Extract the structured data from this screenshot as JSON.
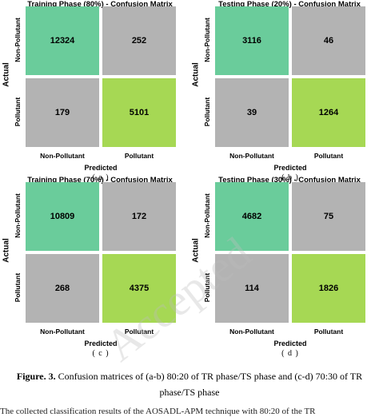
{
  "colors": {
    "true_negative": "#6acc9b",
    "true_positive": "#a6d854",
    "off_diagonal": "#b3b3b3"
  },
  "chart_data": [
    {
      "type": "heatmap",
      "title": "Training Phase (80%) - Confusion Matrix",
      "xlabel": "Predicted",
      "ylabel": "Actual",
      "x_categories": [
        "Non-Pollutant",
        "Pollutant"
      ],
      "y_categories": [
        "Non-Pollutant",
        "Pollutant"
      ],
      "matrix": [
        [
          12324,
          252
        ],
        [
          179,
          5101
        ]
      ],
      "sub_label": "( a )"
    },
    {
      "type": "heatmap",
      "title": "Testing Phase (20%) - Confusion Matrix",
      "xlabel": "Predicted",
      "ylabel": "Actual",
      "x_categories": [
        "Non-Pollutant",
        "Pollutant"
      ],
      "y_categories": [
        "Non-Pollutant",
        "Pollutant"
      ],
      "matrix": [
        [
          3116,
          46
        ],
        [
          39,
          1264
        ]
      ],
      "sub_label": "( b )"
    },
    {
      "type": "heatmap",
      "title": "Training Phase (70%) - Confusion Matrix",
      "xlabel": "Predicted",
      "ylabel": "Actual",
      "x_categories": [
        "Non-Pollutant",
        "Pollutant"
      ],
      "y_categories": [
        "Non-Pollutant",
        "Pollutant"
      ],
      "matrix": [
        [
          10809,
          172
        ],
        [
          268,
          4375
        ]
      ],
      "sub_label": "( c )"
    },
    {
      "type": "heatmap",
      "title": "Testing Phase (30%) - Confusion Matrix",
      "xlabel": "Predicted",
      "ylabel": "Actual",
      "x_categories": [
        "Non-Pollutant",
        "Pollutant"
      ],
      "y_categories": [
        "Non-Pollutant",
        "Pollutant"
      ],
      "matrix": [
        [
          4682,
          75
        ],
        [
          114,
          1826
        ]
      ],
      "sub_label": "( d )"
    }
  ],
  "caption": {
    "figure_label": "Figure. 3.",
    "text": "Confusion matrices of (a-b) 80:20 of TR phase/TS phase and (c-d) 70:30 of TR phase/TS phase"
  },
  "bottom_text": "The collected classification results of the AOSADL-APM technique with 80:20 of the TR"
}
